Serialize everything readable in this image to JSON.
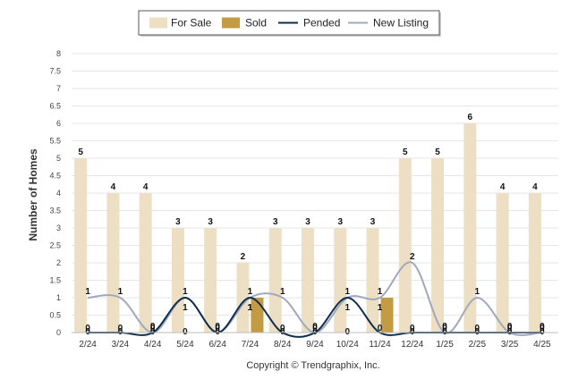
{
  "chart_data": {
    "type": "bar",
    "categories": [
      "2/24",
      "3/24",
      "4/24",
      "5/24",
      "6/24",
      "7/24",
      "8/24",
      "9/24",
      "10/24",
      "11/24",
      "12/24",
      "1/25",
      "2/25",
      "3/25",
      "4/25"
    ],
    "ylabel": "Number of Homes",
    "xlabel": "",
    "ylim": [
      0,
      8
    ],
    "yticks": [
      "0",
      "0.5",
      "1",
      "1.5",
      "2",
      "2.5",
      "3",
      "3.5",
      "4",
      "4.5",
      "5",
      "5.5",
      "6",
      "6.5",
      "7",
      "7.5",
      "8"
    ],
    "grid": true,
    "legend_position": "top-center",
    "series": [
      {
        "name": "For Sale",
        "kind": "bar",
        "color": "#EDDFC3",
        "values": [
          5,
          4,
          4,
          3,
          3,
          2,
          3,
          3,
          3,
          3,
          5,
          5,
          6,
          4,
          4
        ]
      },
      {
        "name": "Sold",
        "kind": "bar",
        "color": "#C39B45",
        "values": [
          0,
          0,
          0,
          0,
          0,
          1,
          0,
          0,
          0,
          1,
          0,
          0,
          0,
          0,
          0
        ]
      },
      {
        "name": "Pended",
        "kind": "line",
        "color": "#0F2E4D",
        "values": [
          0,
          0,
          0,
          1,
          0,
          1,
          0,
          0,
          1,
          0,
          0,
          0,
          0,
          0,
          0
        ]
      },
      {
        "name": "New Listing",
        "kind": "line",
        "color": "#A0A8BE",
        "values": [
          1,
          1,
          0,
          1,
          0,
          1,
          1,
          0,
          1,
          1,
          2,
          0,
          1,
          0,
          0
        ]
      }
    ]
  },
  "credit": "Copyright © Trendgraphix, Inc."
}
